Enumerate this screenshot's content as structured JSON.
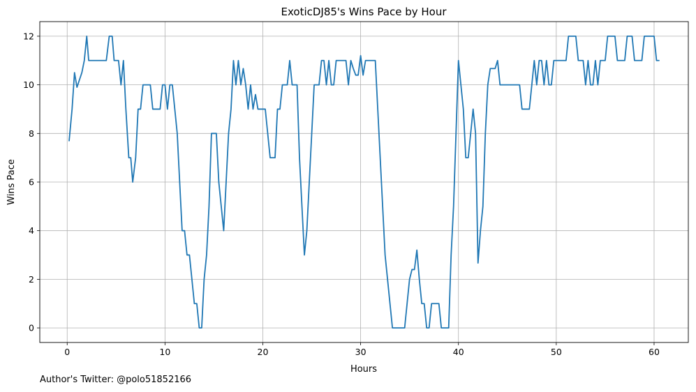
{
  "chart_data": {
    "type": "line",
    "title": "ExoticDJ85's Wins Pace by Hour",
    "xlabel": "Hours",
    "ylabel": "Wins Pace",
    "xlim": [
      -2.8,
      63.5
    ],
    "ylim": [
      -0.6,
      12.6
    ],
    "xticks": [
      0,
      10,
      20,
      30,
      40,
      50,
      60
    ],
    "yticks": [
      0,
      2,
      4,
      6,
      8,
      10,
      12
    ],
    "grid": true,
    "line_color": "#1f77b4",
    "series": [
      {
        "x": [
          0.2,
          0.5,
          0.75,
          1.0,
          1.25,
          1.5,
          1.75,
          2.0,
          2.2,
          2.5,
          2.75,
          3.0,
          3.25,
          3.5,
          3.75,
          4.0,
          4.3,
          4.6,
          4.8,
          5.0,
          5.25,
          5.5,
          5.75,
          6.0,
          6.3,
          6.5,
          6.7,
          7.0,
          7.25,
          7.5,
          7.75,
          8.0,
          8.25,
          8.5,
          8.75,
          9.0,
          9.25,
          9.5,
          9.75,
          10.0,
          10.25,
          10.5,
          10.75,
          11.0,
          11.25,
          11.5,
          11.75,
          12.0,
          12.25,
          12.5,
          12.75,
          13.0,
          13.25,
          13.5,
          13.75,
          14.0,
          14.25,
          14.5,
          14.75,
          15.0,
          15.25,
          15.5,
          15.75,
          16.0,
          16.25,
          16.5,
          16.75,
          17.0,
          17.25,
          17.5,
          17.75,
          18.0,
          18.25,
          18.5,
          18.75,
          19.0,
          19.25,
          19.5,
          19.75,
          20.0,
          20.25,
          20.5,
          20.75,
          21.0,
          21.25,
          21.5,
          21.75,
          22.0,
          22.25,
          22.5,
          22.75,
          23.0,
          23.25,
          23.5,
          23.75,
          24.0,
          24.25,
          24.5,
          24.75,
          25.0,
          25.25,
          25.5,
          25.75,
          26.0,
          26.25,
          26.5,
          26.75,
          27.0,
          27.25,
          27.5,
          27.75,
          28.0,
          28.25,
          28.5,
          28.75,
          29.0,
          29.25,
          29.5,
          29.75,
          30.0,
          30.25,
          30.5,
          30.75,
          31.0,
          31.25,
          31.5,
          31.75,
          32.0,
          32.25,
          32.5,
          32.75,
          33.0,
          33.25,
          33.5,
          33.75,
          34.0,
          34.25,
          34.5,
          34.75,
          35.0,
          35.25,
          35.5,
          35.75,
          36.0,
          36.25,
          36.5,
          36.75,
          37.0,
          37.25,
          37.5,
          37.75,
          38.0,
          38.25,
          38.5,
          38.75,
          39.0,
          39.25,
          39.5,
          39.75,
          40.0,
          40.25,
          40.5,
          40.75,
          41.0,
          41.25,
          41.5,
          41.75,
          42.0,
          42.25,
          42.5,
          42.75,
          43.0,
          43.25,
          43.5,
          43.75,
          44.0,
          44.25,
          44.5,
          44.75,
          45.0,
          45.25,
          45.5,
          45.75,
          46.0,
          46.25,
          46.5,
          46.75,
          47.0,
          47.25,
          47.5,
          47.75,
          48.0,
          48.25,
          48.5,
          48.75,
          49.0,
          49.25,
          49.5,
          49.75,
          50.0,
          50.25,
          50.5,
          50.75,
          51.0,
          51.25,
          51.5,
          51.75,
          52.0,
          52.25,
          52.5,
          52.75,
          53.0,
          53.25,
          53.5,
          53.75,
          54.0,
          54.25,
          54.5,
          54.75,
          55.0,
          55.25,
          55.5,
          55.75,
          56.0,
          56.25,
          56.5,
          56.75,
          57.0,
          57.25,
          57.5,
          57.75,
          58.0,
          58.25,
          58.5,
          58.75,
          59.0,
          59.25,
          59.5,
          59.75,
          60.0,
          60.25,
          60.5
        ],
        "y": [
          7.7,
          9.0,
          10.5,
          9.9,
          10.2,
          10.5,
          11.0,
          12.0,
          11.0,
          11.0,
          11.0,
          11.0,
          11.0,
          11.0,
          11.0,
          11.0,
          12.0,
          12.0,
          11.0,
          11.0,
          11.0,
          10.0,
          11.0,
          9.0,
          7.0,
          7.0,
          6.0,
          7.0,
          9.0,
          9.0,
          10.0,
          10.0,
          10.0,
          10.0,
          9.0,
          9.0,
          9.0,
          9.0,
          10.0,
          10.0,
          9.0,
          10.0,
          10.0,
          9.0,
          8.0,
          6.0,
          4.0,
          4.0,
          3.0,
          3.0,
          2.0,
          1.0,
          1.0,
          0.0,
          0.0,
          2.0,
          3.0,
          5.0,
          8.0,
          8.0,
          8.0,
          6.0,
          5.0,
          4.0,
          6.0,
          8.0,
          9.0,
          11.0,
          10.0,
          11.0,
          10.0,
          10.67,
          10.0,
          9.0,
          10.0,
          9.0,
          9.6,
          9.0,
          9.0,
          9.0,
          9.0,
          8.0,
          7.0,
          7.0,
          7.0,
          9.0,
          9.0,
          10.0,
          10.0,
          10.0,
          11.0,
          10.0,
          10.0,
          10.0,
          7.0,
          5.0,
          3.0,
          4.0,
          6.0,
          8.0,
          10.0,
          10.0,
          10.0,
          11.0,
          11.0,
          10.0,
          11.0,
          10.0,
          10.0,
          11.0,
          11.0,
          11.0,
          11.0,
          11.0,
          10.0,
          11.0,
          10.67,
          10.4,
          10.4,
          11.2,
          10.4,
          11.0,
          11.0,
          11.0,
          11.0,
          11.0,
          9.0,
          7.0,
          5.0,
          3.0,
          2.0,
          1.0,
          0.0,
          0.0,
          0.0,
          0.0,
          0.0,
          0.0,
          1.0,
          2.0,
          2.4,
          2.4,
          3.2,
          2.0,
          1.0,
          1.0,
          0.0,
          0.0,
          1.0,
          1.0,
          1.0,
          1.0,
          0.0,
          0.0,
          0.0,
          0.0,
          3.0,
          5.0,
          8.0,
          11.0,
          10.0,
          9.0,
          7.0,
          7.0,
          8.0,
          9.0,
          8.0,
          2.67,
          4.0,
          5.0,
          8.0,
          10.0,
          10.67,
          10.67,
          10.67,
          11.0,
          10.0,
          10.0,
          10.0,
          10.0,
          10.0,
          10.0,
          10.0,
          10.0,
          10.0,
          9.0,
          9.0,
          9.0,
          9.0,
          10.0,
          11.0,
          10.0,
          11.0,
          11.0,
          10.0,
          11.0,
          10.0,
          10.0,
          11.0,
          11.0,
          11.0,
          11.0,
          11.0,
          11.0,
          12.0,
          12.0,
          12.0,
          12.0,
          11.0,
          11.0,
          11.0,
          10.0,
          11.0,
          10.0,
          10.0,
          11.0,
          10.0,
          11.0,
          11.0,
          11.0,
          12.0,
          12.0,
          12.0,
          12.0,
          11.0,
          11.0,
          11.0,
          11.0,
          12.0,
          12.0,
          12.0,
          11.0,
          11.0,
          11.0,
          11.0,
          12.0,
          12.0,
          12.0,
          12.0,
          12.0,
          11.0,
          11.0
        ]
      }
    ]
  },
  "footer": {
    "note": "Author's Twitter: @polo51852166"
  }
}
